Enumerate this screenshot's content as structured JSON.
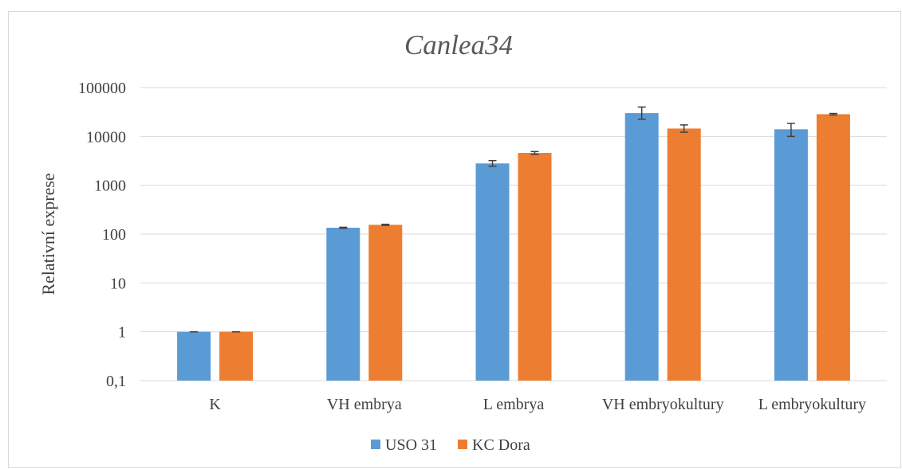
{
  "chart_data": {
    "type": "bar",
    "title": "Canlea34",
    "ylabel": "Relativní exprese",
    "xlabel": "",
    "yscale": "log",
    "ylim": [
      0.1,
      100000
    ],
    "ytick_labels": [
      "0,1",
      "1",
      "10",
      "100",
      "1000",
      "10000",
      "100000"
    ],
    "grid": true,
    "legend_position": "bottom",
    "categories": [
      "K",
      "VH embrya",
      "L embrya",
      "VH embryokultury",
      "L embryokultury"
    ],
    "series": [
      {
        "name": "USO 31",
        "color": "#5b9bd5",
        "values": [
          1,
          135,
          2800,
          30000,
          14000
        ],
        "error_low": [
          1,
          132,
          2450,
          22500,
          10000
        ],
        "error_high": [
          1,
          138,
          3200,
          40000,
          18500
        ]
      },
      {
        "name": "KC Dora",
        "color": "#ed7d31",
        "values": [
          1,
          155,
          4600,
          14500,
          28500
        ],
        "error_low": [
          1,
          151,
          4300,
          12200,
          27500
        ],
        "error_high": [
          1,
          159,
          4900,
          17200,
          29500
        ]
      }
    ],
    "colors": {
      "grid": "#d9d9d9",
      "error_bar": "#404040"
    }
  }
}
